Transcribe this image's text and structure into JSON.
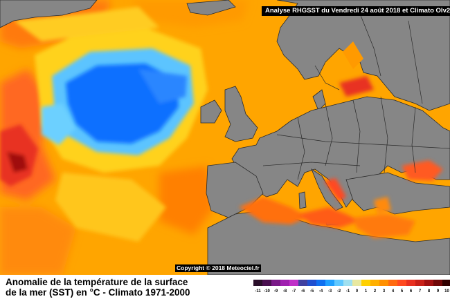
{
  "header": {
    "title": "Analyse RHGSST du Vendredi 24 août 2018 et Climato OIv2"
  },
  "map": {
    "copyright": "Copyright © 2018 Meteociel.fr",
    "colors": {
      "land": "#868686",
      "border": "#2a2a2a",
      "warm_base": "#ffa500",
      "cold_core": "#0a6fff"
    }
  },
  "caption": {
    "line1": "Anomalie de la température de la surface",
    "line2": "de la mer (SST) en °C - Climato 1971-2000"
  },
  "legend": {
    "labels": [
      "-11",
      "-10",
      "-9",
      "-8",
      "-7",
      "-6",
      "-5",
      "-4",
      "-3",
      "-2",
      "-1",
      "0",
      "1",
      "2",
      "3",
      "4",
      "5",
      "6",
      "7",
      "8",
      "9",
      "10"
    ],
    "colors": [
      "#2a0f2a",
      "#4a1050",
      "#7a1a88",
      "#a020b0",
      "#c030c8",
      "#4040a0",
      "#2050d0",
      "#1070f0",
      "#20a0ff",
      "#60c8ff",
      "#a0e0f0",
      "#e8e8a0",
      "#ffd000",
      "#ffb000",
      "#ff9000",
      "#ff6a10",
      "#ff4a20",
      "#e83020",
      "#c82018",
      "#a01010",
      "#700808",
      "#300000"
    ]
  }
}
